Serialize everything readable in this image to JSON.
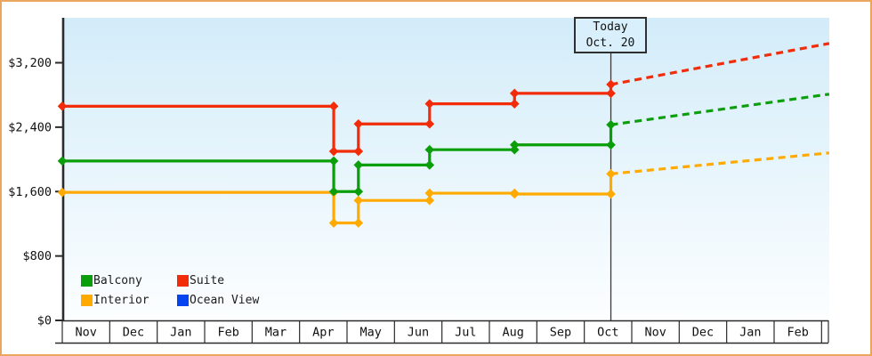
{
  "chart_data": {
    "type": "line",
    "subtype": "step-line price history with dashed forecast",
    "title": "",
    "grid": false,
    "x_axis": {
      "months": [
        "Nov",
        "Dec",
        "Jan",
        "Feb",
        "Mar",
        "Apr",
        "May",
        "Jun",
        "Jul",
        "Aug",
        "Sep",
        "Oct",
        "Nov",
        "Dec",
        "Jan",
        "Feb"
      ]
    },
    "y_axis": {
      "ticks": [
        {
          "label": "$0",
          "value": 0
        },
        {
          "label": "$800",
          "value": 800
        },
        {
          "label": "$1,600",
          "value": 1600
        },
        {
          "label": "$2,400",
          "value": 2400
        },
        {
          "label": "$3,200",
          "value": 3200
        }
      ],
      "ylim": [
        0,
        3760
      ]
    },
    "today": {
      "line1": "Today",
      "line2": "Oct. 20",
      "month_offset": 11.56
    },
    "projection_end_month_offset": 16.16,
    "series": [
      {
        "name": "Balcony",
        "color": "#0b9e0b",
        "plotted": true,
        "changes": [
          [
            0,
            1980
          ],
          [
            5.72,
            1600
          ],
          [
            6.24,
            1930
          ],
          [
            7.74,
            2120
          ],
          [
            9.53,
            2180
          ],
          [
            11.56,
            2430
          ]
        ],
        "projected_value": 2810
      },
      {
        "name": "Suite",
        "color": "#f22b08",
        "plotted": true,
        "changes": [
          [
            0,
            2660
          ],
          [
            5.72,
            2100
          ],
          [
            6.24,
            2440
          ],
          [
            7.74,
            2690
          ],
          [
            9.53,
            2820
          ],
          [
            11.56,
            2930
          ]
        ],
        "projected_value": 3440
      },
      {
        "name": "Interior",
        "color": "#ffaa00",
        "plotted": true,
        "changes": [
          [
            0,
            1590
          ],
          [
            5.72,
            1210
          ],
          [
            6.24,
            1490
          ],
          [
            7.74,
            1580
          ],
          [
            9.53,
            1570
          ],
          [
            11.56,
            1820
          ]
        ],
        "projected_value": 2080
      },
      {
        "name": "Ocean View",
        "color": "#0443f0",
        "plotted": false,
        "changes": [],
        "projected_value": null
      }
    ],
    "legend": [
      {
        "label": "Balcony",
        "color": "#0b9e0b"
      },
      {
        "label": "Suite",
        "color": "#f22b08"
      },
      {
        "label": "Interior",
        "color": "#ffaa00"
      },
      {
        "label": "Ocean View",
        "color": "#0443f0"
      }
    ],
    "colors": {
      "frame_border": "#eaa55e",
      "plot_bg_top": "#d3ecf9",
      "plot_bg_bottom": "#fcfeff",
      "axis": "#2b2b2b",
      "today_line": "#3a3a3a",
      "today_box_bg": "#d9effb"
    }
  }
}
